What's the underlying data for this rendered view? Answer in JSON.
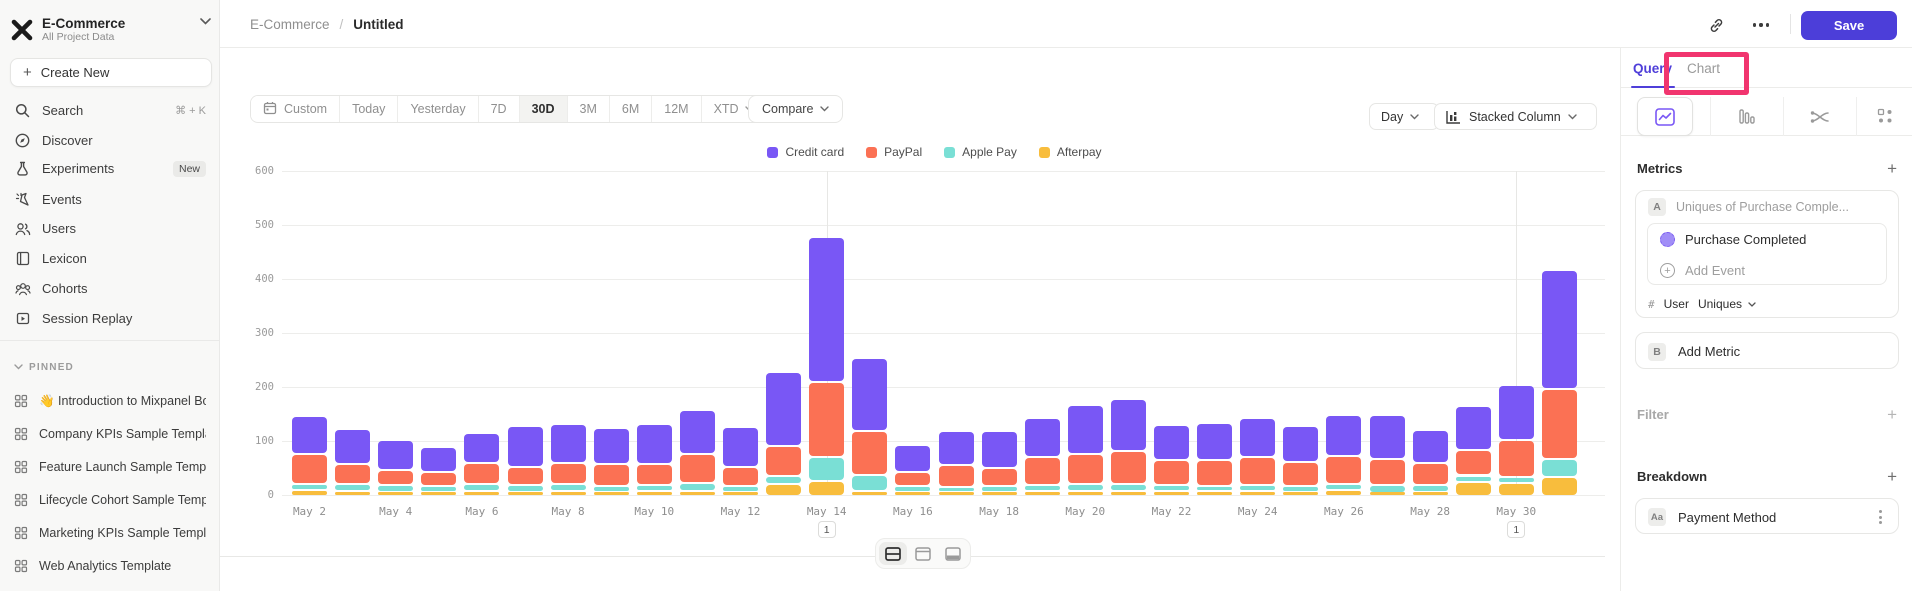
{
  "sidebar": {
    "project_name": "E-Commerce",
    "project_subtitle": "All Project Data",
    "create_new_label": "Create New",
    "nav_items": [
      {
        "icon": "search-icon",
        "label": "Search",
        "shortcut": "⌘ + K"
      },
      {
        "icon": "discover-icon",
        "label": "Discover"
      },
      {
        "icon": "experiments-icon",
        "label": "Experiments",
        "badge": "New"
      },
      {
        "icon": "events-icon",
        "label": "Events"
      },
      {
        "icon": "users-icon",
        "label": "Users"
      },
      {
        "icon": "lexicon-icon",
        "label": "Lexicon"
      },
      {
        "icon": "cohorts-icon",
        "label": "Cohorts"
      },
      {
        "icon": "session-replay-icon",
        "label": "Session Replay"
      }
    ],
    "pinned_header": "PINNED",
    "pinned_items": [
      "👋 Introduction to Mixpanel Bo",
      "Company KPIs Sample Templat",
      "Feature Launch Sample Templa",
      "Lifecycle Cohort Sample Temp",
      "Marketing KPIs Sample Templat",
      "Web Analytics Template"
    ]
  },
  "topbar": {
    "project": "E-Commerce",
    "separator": "/",
    "page": "Untitled",
    "save_label": "Save"
  },
  "toolbar": {
    "date_ranges": [
      "Custom",
      "Today",
      "Yesterday",
      "7D",
      "30D",
      "3M",
      "6M",
      "12M",
      "XTD"
    ],
    "active_range": "30D",
    "compare_label": "Compare",
    "granularity_label": "Day",
    "chart_type_label": "Stacked Column"
  },
  "query_panel": {
    "tabs": [
      "Query",
      "Chart"
    ],
    "active_tab": "Query",
    "metrics_header": "Metrics",
    "metric_slot_a": {
      "badge": "A",
      "summary": "Uniques of Purchase Comple...",
      "event": "Purchase Completed",
      "add_event_label": "Add Event",
      "agg_symbol": "#",
      "agg_entity": "User",
      "agg_function": "Uniques"
    },
    "metric_slot_b": {
      "badge": "B",
      "label": "Add Metric"
    },
    "filter_header": "Filter",
    "breakdown_header": "Breakdown",
    "breakdown": {
      "badge": "Aa",
      "property": "Payment Method"
    }
  },
  "annotation_overlay": {
    "highlighted_tab": "Chart",
    "color": "#f1356f"
  },
  "view_toggle": {
    "options": [
      "chart-and-table",
      "chart-only",
      "table-only"
    ],
    "active": "chart-and-table"
  },
  "chart_data": {
    "type": "bar",
    "stacked": true,
    "title": "",
    "x": [
      "May 2",
      "May 3",
      "May 4",
      "May 5",
      "May 6",
      "May 7",
      "May 8",
      "May 9",
      "May 10",
      "May 11",
      "May 12",
      "May 13",
      "May 14",
      "May 15",
      "May 16",
      "May 17",
      "May 18",
      "May 19",
      "May 20",
      "May 21",
      "May 22",
      "May 23",
      "May 24",
      "May 25",
      "May 26",
      "May 27",
      "May 28",
      "May 29",
      "May 30",
      "May 31"
    ],
    "x_axis_ticks_shown": [
      "May 2",
      "May 4",
      "May 6",
      "May 8",
      "May 10",
      "May 12",
      "May 14",
      "May 16",
      "May 18",
      "May 20",
      "May 22",
      "May 24",
      "May 26",
      "May 28",
      "May 30"
    ],
    "series": [
      {
        "name": "Credit card",
        "color": "#7957f5",
        "values": [
          72,
          66,
          55,
          47,
          55,
          75,
          72,
          67,
          73,
          83,
          73,
          138,
          267,
          136,
          50,
          62,
          69,
          71,
          91,
          95,
          65,
          68,
          72,
          67,
          75,
          82,
          60,
          80,
          101,
          220
        ]
      },
      {
        "name": "PayPal",
        "color": "#fb7154",
        "values": [
          55,
          36,
          28,
          26,
          40,
          34,
          39,
          41,
          40,
          53,
          36,
          55,
          140,
          81,
          26,
          41,
          33,
          52,
          54,
          62,
          47,
          48,
          51,
          45,
          53,
          48,
          42,
          48,
          69,
          131
        ]
      },
      {
        "name": "Apple Pay",
        "color": "#7adfd5",
        "values": [
          10,
          13,
          12,
          10,
          12,
          12,
          13,
          10,
          11,
          14,
          10,
          15,
          44,
          29,
          12,
          10,
          10,
          12,
          13,
          12,
          10,
          10,
          12,
          10,
          10,
          14,
          12,
          12,
          10,
          33
        ]
      },
      {
        "name": "Afterpay",
        "color": "#f8bd3d",
        "values": [
          12,
          10,
          8,
          8,
          10,
          8,
          9,
          8,
          9,
          10,
          8,
          22,
          28,
          10,
          7,
          7,
          8,
          9,
          10,
          10,
          10,
          9,
          9,
          8,
          12,
          6,
          8,
          26,
          25,
          35
        ]
      }
    ],
    "stack_order_bottom_to_top": [
      "Afterpay",
      "Apple Pay",
      "PayPal",
      "Credit card"
    ],
    "ylim": [
      0,
      600
    ],
    "y_ticks": [
      0,
      100,
      200,
      300,
      400,
      500,
      600
    ],
    "grid": true,
    "legend_position": "top",
    "annotations": [
      {
        "x": "May 14",
        "label": "1"
      },
      {
        "x": "May 30",
        "label": "1"
      }
    ]
  }
}
